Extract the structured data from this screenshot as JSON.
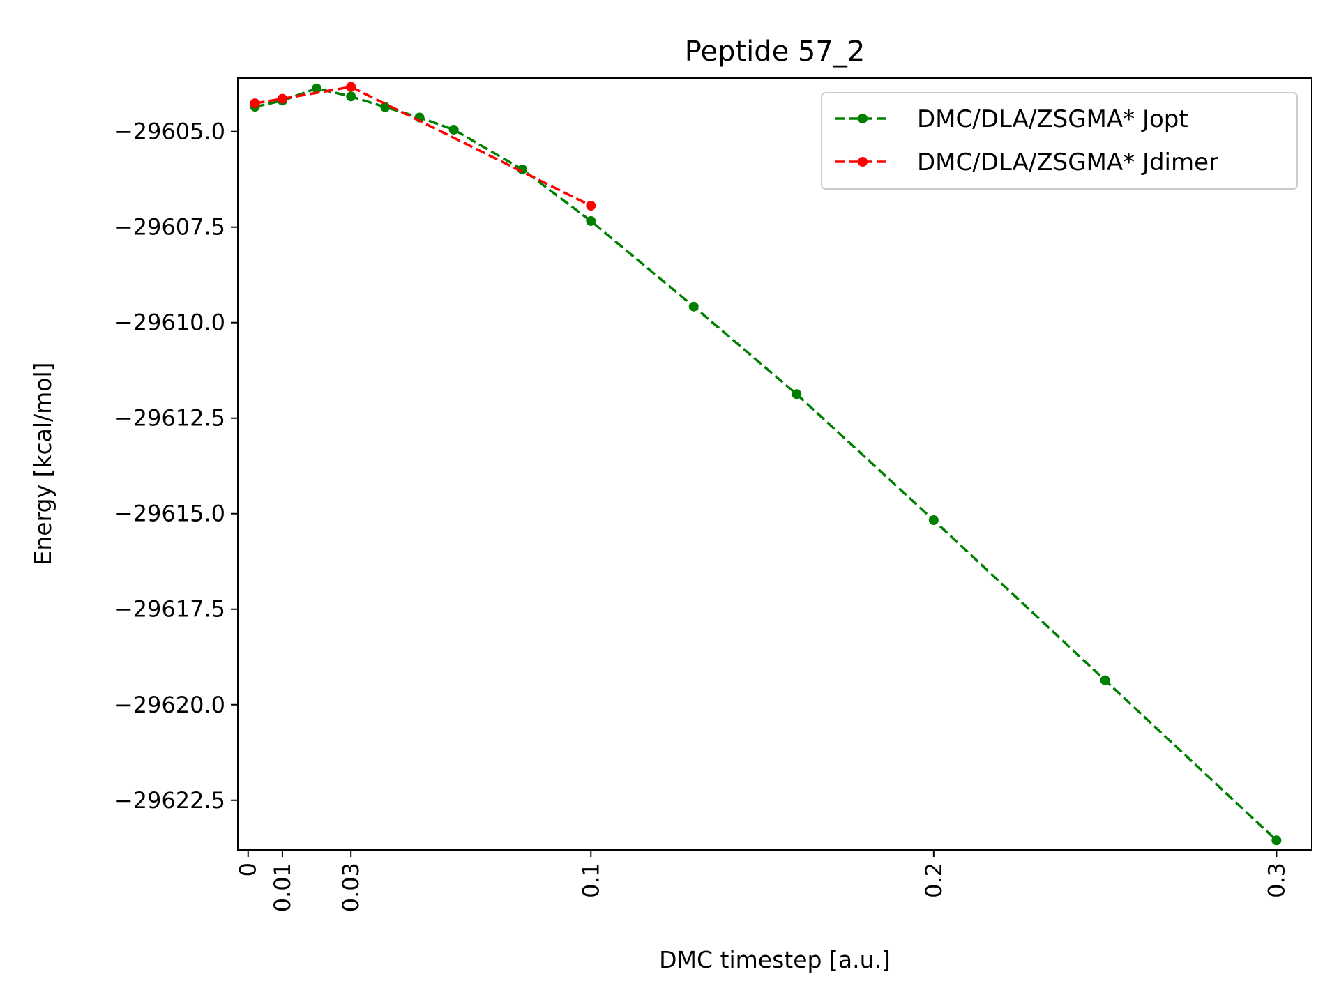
{
  "chart_data": {
    "type": "line",
    "title": "Peptide 57_2",
    "xlabel": "DMC timestep [a.u.]",
    "ylabel": "Energy [kcal/mol]",
    "xlim": [
      -0.003,
      0.3103
    ],
    "ylim": [
      -29623.8,
      -29603.6
    ],
    "x_ticks": [
      {
        "value": 0,
        "label": "0"
      },
      {
        "value": 0.01,
        "label": "0.01"
      },
      {
        "value": 0.03,
        "label": "0.03"
      },
      {
        "value": 0.1,
        "label": "0.1"
      },
      {
        "value": 0.2,
        "label": "0.2"
      },
      {
        "value": 0.3,
        "label": "0.3"
      }
    ],
    "y_ticks": [
      {
        "value": -29605.0,
        "label": "−29605.0"
      },
      {
        "value": -29607.5,
        "label": "−29607.5"
      },
      {
        "value": -29610.0,
        "label": "−29610.0"
      },
      {
        "value": -29612.5,
        "label": "−29612.5"
      },
      {
        "value": -29615.0,
        "label": "−29615.0"
      },
      {
        "value": -29617.5,
        "label": "−29617.5"
      },
      {
        "value": -29620.0,
        "label": "−29620.0"
      },
      {
        "value": -29622.5,
        "label": "−29622.5"
      }
    ],
    "legend_position": "top-right",
    "grid": false,
    "series": [
      {
        "name": "DMC/DLA/ZSGMA* Jopt",
        "color": "#008000",
        "linestyle": "dashed",
        "marker": "circle",
        "x": [
          0.002,
          0.01,
          0.02,
          0.03,
          0.04,
          0.05,
          0.06,
          0.08,
          0.1,
          0.13,
          0.16,
          0.2,
          0.25,
          0.3
        ],
        "y": [
          -29604.35,
          -29604.19,
          -29603.87,
          -29604.08,
          -29604.36,
          -29604.63,
          -29604.95,
          -29605.99,
          -29607.34,
          -29609.58,
          -29611.87,
          -29615.17,
          -29619.36,
          -29623.55
        ]
      },
      {
        "name": "DMC/DLA/ZSGMA* Jdimer",
        "color": "#ff0000",
        "linestyle": "dashed",
        "marker": "circle",
        "x": [
          0.002,
          0.01,
          0.03,
          0.1
        ],
        "y": [
          -29604.26,
          -29604.14,
          -29603.83,
          -29606.94
        ]
      }
    ]
  }
}
